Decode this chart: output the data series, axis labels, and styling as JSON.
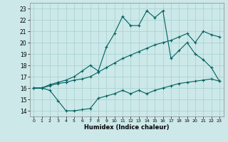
{
  "xlabel": "Humidex (Indice chaleur)",
  "bg_color": "#cce8e8",
  "grid_color": "#aad4d4",
  "line_color": "#006060",
  "xlim": [
    -0.5,
    23.5
  ],
  "ylim": [
    13.5,
    23.5
  ],
  "xticks": [
    0,
    1,
    2,
    3,
    4,
    5,
    6,
    7,
    8,
    9,
    10,
    11,
    12,
    13,
    14,
    15,
    16,
    17,
    18,
    19,
    20,
    21,
    22,
    23
  ],
  "yticks": [
    14,
    15,
    16,
    17,
    18,
    19,
    20,
    21,
    22,
    23
  ],
  "line1_x": [
    0,
    1,
    2,
    3,
    4,
    5,
    6,
    7,
    8,
    9,
    10,
    11,
    12,
    13,
    14,
    15,
    16,
    17,
    18,
    19,
    20,
    21,
    22,
    23
  ],
  "line1_y": [
    16.0,
    16.0,
    15.8,
    14.9,
    14.0,
    14.0,
    14.1,
    14.2,
    15.1,
    15.3,
    15.5,
    15.8,
    15.5,
    15.8,
    15.5,
    15.8,
    16.0,
    16.2,
    16.4,
    16.5,
    16.6,
    16.7,
    16.8,
    16.6
  ],
  "line2_x": [
    0,
    1,
    2,
    3,
    4,
    5,
    6,
    7,
    8,
    9,
    10,
    11,
    12,
    13,
    14,
    15,
    16,
    17,
    18,
    19,
    20,
    21,
    22,
    23
  ],
  "line2_y": [
    16.0,
    16.0,
    16.2,
    16.4,
    16.5,
    16.7,
    16.8,
    17.0,
    17.4,
    17.8,
    18.2,
    18.6,
    18.9,
    19.2,
    19.5,
    19.8,
    20.0,
    20.2,
    20.5,
    20.8,
    20.0,
    21.0,
    20.7,
    20.5
  ],
  "line3_x": [
    0,
    1,
    2,
    3,
    4,
    5,
    6,
    7,
    8,
    9,
    10,
    11,
    12,
    13,
    14,
    15,
    16,
    17,
    18,
    19,
    20,
    21,
    22,
    23
  ],
  "line3_y": [
    16.0,
    16.0,
    16.3,
    16.5,
    16.7,
    17.0,
    17.5,
    18.0,
    17.5,
    19.6,
    20.8,
    22.3,
    21.5,
    21.5,
    22.8,
    22.2,
    22.8,
    18.6,
    19.3,
    20.0,
    19.0,
    18.5,
    17.8,
    16.6
  ]
}
